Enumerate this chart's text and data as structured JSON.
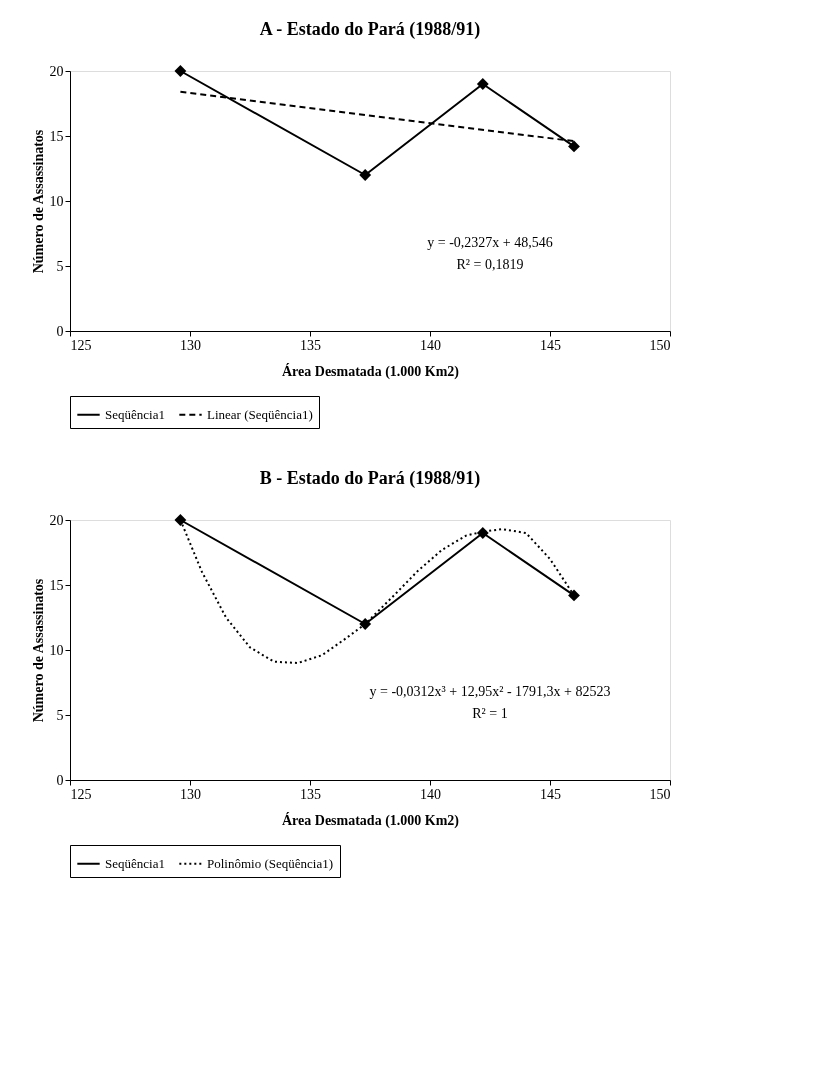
{
  "chart_data": [
    {
      "type": "line",
      "title": "A - Estado do Pará  (1988/91)",
      "xlabel": "Área Desmatada (1.000 Km2)",
      "ylabel": "Número de Assassinatos",
      "xlim": [
        125,
        150
      ],
      "xticks": [
        125,
        130,
        135,
        140,
        145,
        150
      ],
      "ylim": [
        0,
        20
      ],
      "yticks": [
        0,
        5,
        10,
        15,
        20
      ],
      "grid": false,
      "legend": "bottom",
      "annotations": [
        "y = -0,2327x + 48,546",
        "R² = 0,1819"
      ],
      "series": [
        {
          "name": "Seqüência1",
          "color": "#000000",
          "marker": "diamond",
          "line_style": "solid",
          "x": [
            129.6,
            137.3,
            142.2,
            146.0
          ],
          "values": [
            20,
            12,
            19,
            14.2
          ]
        },
        {
          "name": "Linear (Seqüência1)",
          "color": "#000000",
          "marker": "none",
          "line_style": "dashed",
          "x": [
            129.6,
            146.0
          ],
          "values": [
            18.4,
            14.6
          ]
        }
      ]
    },
    {
      "type": "line",
      "title": "B - Estado do Pará  (1988/91)",
      "xlabel": "Área Desmatada (1.000 Km2)",
      "ylabel": "Número de Assassinatos",
      "xlim": [
        125,
        150
      ],
      "xticks": [
        125,
        130,
        135,
        140,
        145,
        150
      ],
      "ylim": [
        0,
        20
      ],
      "yticks": [
        0,
        5,
        10,
        15,
        20
      ],
      "grid": false,
      "legend": "bottom",
      "annotations": [
        "y = -0,0312x³ + 12,95x² - 1791,3x + 82523",
        "R² = 1"
      ],
      "series": [
        {
          "name": "Seqüência1",
          "color": "#000000",
          "marker": "diamond",
          "line_style": "solid",
          "x": [
            129.6,
            137.3,
            142.2,
            146.0
          ],
          "values": [
            20,
            12,
            19,
            14.2
          ]
        },
        {
          "name": "Polinômio (Seqüência1)",
          "color": "#000000",
          "marker": "none",
          "line_style": "dotted",
          "x": [
            129.6,
            130.5,
            131.5,
            132.5,
            133.5,
            134.5,
            135.5,
            136.5,
            137.3,
            138.5,
            139.5,
            140.5,
            141.5,
            142.2,
            143.0,
            144.0,
            145.0,
            146.0
          ],
          "values": [
            20,
            16,
            12.5,
            10.2,
            9.1,
            9.0,
            9.6,
            10.9,
            12,
            14.2,
            16.1,
            17.7,
            18.8,
            19.1,
            19.3,
            19.0,
            17.0,
            14.2
          ]
        }
      ]
    }
  ]
}
